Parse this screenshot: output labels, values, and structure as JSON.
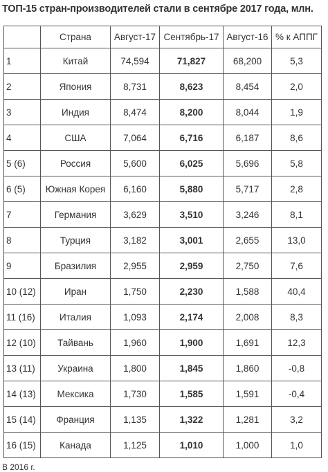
{
  "title": "ТОП-15 стран-производителей стали в сентябре 2017 года, млн.",
  "columns": [
    "",
    "Страна",
    "Август-17",
    "Сентябрь-17",
    "Август-16",
    "% к АППГ"
  ],
  "rows": [
    {
      "rank": "1",
      "country": "Китай",
      "aug17": "74,594",
      "sep17": "71,827",
      "aug16": "68,200",
      "yoy": "5,3"
    },
    {
      "rank": "2",
      "country": "Япония",
      "aug17": "8,731",
      "sep17": "8,623",
      "aug16": "8,454",
      "yoy": "2,0"
    },
    {
      "rank": "3",
      "country": "Индия",
      "aug17": "8,474",
      "sep17": "8,200",
      "aug16": "8,044",
      "yoy": "1,9"
    },
    {
      "rank": "4",
      "country": "США",
      "aug17": "7,064",
      "sep17": "6,716",
      "aug16": "6,187",
      "yoy": "8,6"
    },
    {
      "rank": "5 (6)",
      "country": "Россия",
      "aug17": "5,600",
      "sep17": "6,025",
      "aug16": "5,696",
      "yoy": "5,8"
    },
    {
      "rank": "6 (5)",
      "country": "Южная Корея",
      "aug17": "6,160",
      "sep17": "5,880",
      "aug16": "5,717",
      "yoy": "2,8"
    },
    {
      "rank": "7",
      "country": "Германия",
      "aug17": "3,629",
      "sep17": "3,510",
      "aug16": "3,246",
      "yoy": "8,1"
    },
    {
      "rank": "8",
      "country": "Турция",
      "aug17": "3,182",
      "sep17": "3,001",
      "aug16": "2,655",
      "yoy": "13,0"
    },
    {
      "rank": "9",
      "country": "Бразилия",
      "aug17": "2,955",
      "sep17": "2,959",
      "aug16": "2,750",
      "yoy": "7,6"
    },
    {
      "rank": "10 (12)",
      "country": "Иран",
      "aug17": "1,750",
      "sep17": "2,230",
      "aug16": "1,588",
      "yoy": "40,4"
    },
    {
      "rank": "11 (16)",
      "country": "Италия",
      "aug17": "1,093",
      "sep17": "2,174",
      "aug16": "2,008",
      "yoy": "8,3"
    },
    {
      "rank": "12 (10)",
      "country": "Тайвань",
      "aug17": "1,960",
      "sep17": "1,900",
      "aug16": "1,691",
      "yoy": "12,3"
    },
    {
      "rank": "13 (11)",
      "country": "Украина",
      "aug17": "1,800",
      "sep17": "1,845",
      "aug16": "1,860",
      "yoy": "-0,8"
    },
    {
      "rank": "14 (13)",
      "country": "Мексика",
      "aug17": "1,730",
      "sep17": "1,585",
      "aug16": "1,591",
      "yoy": "-0,4"
    },
    {
      "rank": "15 (14)",
      "country": "Франция",
      "aug17": "1,135",
      "sep17": "1,322",
      "aug16": "1,281",
      "yoy": "3,2"
    },
    {
      "rank": "16 (15)",
      "country": "Канада",
      "aug17": "1,125",
      "sep17": "1,010",
      "aug16": "1,000",
      "yoy": "1,0"
    }
  ],
  "footnote": "В 2016 г."
}
